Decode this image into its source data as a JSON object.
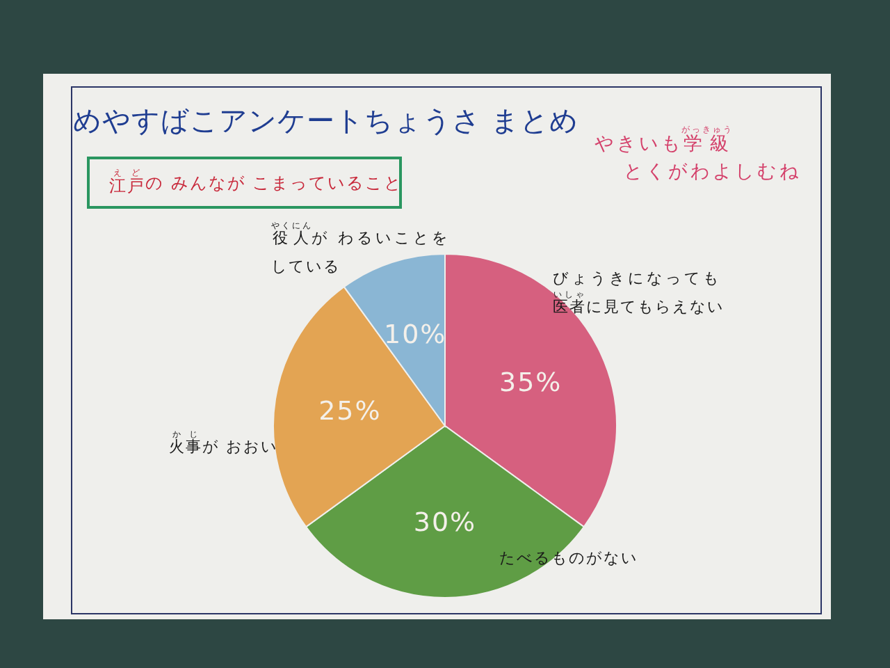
{
  "chart_data": {
    "type": "pie",
    "title": "めやすばこアンケートちょうさ まとめ",
    "subtitle": "江戸$^{えど}$の みんなが こまっていること",
    "annotations": [
      "やきいも学級$^{がっきゅう}$",
      "とくがわよしむね"
    ],
    "categories": [
      "びょうきになっても医者$^{いしゃ}$に見てもらえない",
      "たべるものがない",
      "火事$^{かじ}$が おおい",
      "役人$^{やくにん}$が わるいことをしている"
    ],
    "values": [
      35,
      30,
      25,
      10
    ],
    "colors": [
      "#d6607f",
      "#5f9d45",
      "#e3a453",
      "#8ab6d4"
    ],
    "value_labels": [
      "35%",
      "30%",
      "25%",
      "10%"
    ]
  }
}
